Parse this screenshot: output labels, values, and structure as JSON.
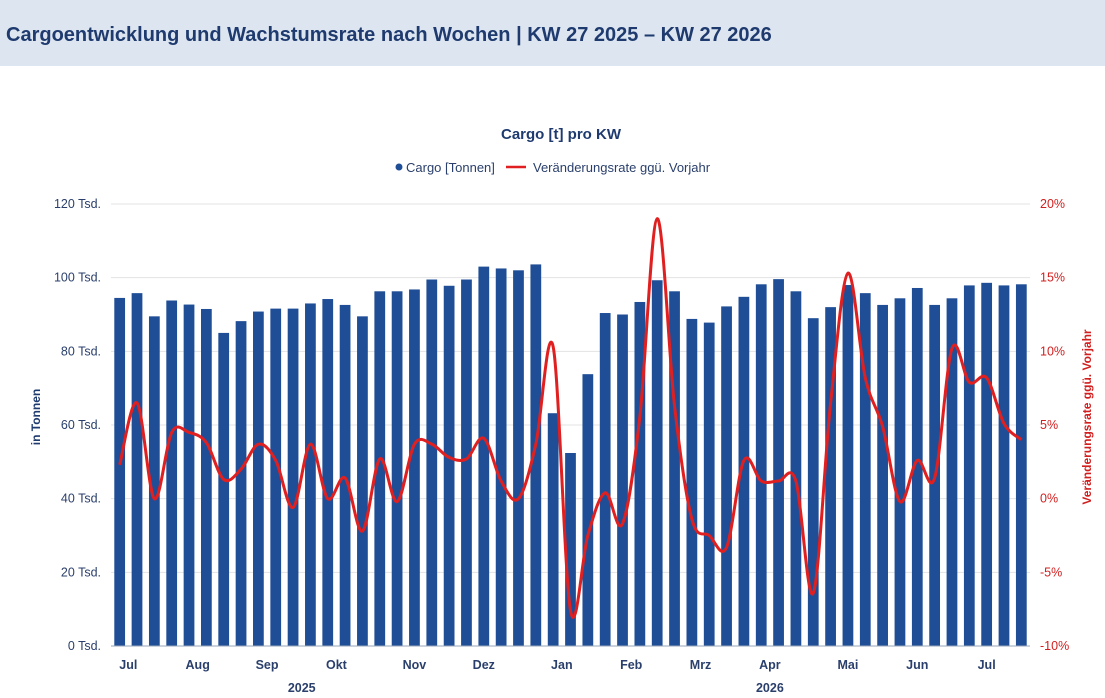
{
  "header": {
    "title": "Cargoentwicklung und Wachstumsrate nach Wochen | KW 27 2025 – KW 27 2026"
  },
  "colors": {
    "bar": "#1f4e96",
    "line": "#e02020",
    "header_bg": "#dde6f0",
    "grid": "#e3e3e3"
  },
  "chart_data": {
    "type": "bar",
    "title": "Cargo [t] pro KW",
    "ylabel": "in Tonnen",
    "y2label": "Veränderungsrate ggü. Vorjahr",
    "ylim": [
      0,
      120000
    ],
    "y2lim": [
      -10,
      20
    ],
    "yticks": [
      "0 Tsd.",
      "20 Tsd.",
      "40 Tsd.",
      "60 Tsd.",
      "80 Tsd.",
      "100 Tsd.",
      "120 Tsd."
    ],
    "y2ticks": [
      "-10%",
      "-5%",
      "0%",
      "5%",
      "10%",
      "15%",
      "20%"
    ],
    "months": [
      "Jul",
      "Aug",
      "Sep",
      "Okt",
      "Nov",
      "Dez",
      "Jan",
      "Feb",
      "Mrz",
      "Apr",
      "Mai",
      "Jun",
      "Jul"
    ],
    "month_weeks": [
      1,
      5,
      9,
      13,
      17.5,
      21.5,
      26,
      30,
      34,
      38,
      42.5,
      46.5,
      50.5
    ],
    "years": [
      "2025",
      "2026"
    ],
    "year_weeks": [
      11,
      38
    ],
    "legend_position": "top-center",
    "series": [
      {
        "name": "Cargo [Tonnen]",
        "kind": "bar",
        "values": [
          94500,
          95800,
          89500,
          93800,
          92700,
          91500,
          85000,
          88200,
          90800,
          91600,
          91600,
          93000,
          94200,
          92600,
          89500,
          96300,
          96300,
          96800,
          99500,
          97800,
          99500,
          103000,
          102500,
          102000,
          103600,
          63200,
          52400,
          73800,
          90400,
          90000,
          93400,
          99300,
          96300,
          88800,
          87800,
          92200,
          94800,
          98200,
          99600,
          96300,
          89000,
          92000,
          98000,
          95800,
          92600,
          94400,
          97200,
          92600,
          94400,
          97900,
          98600,
          97900,
          98200
        ]
      },
      {
        "name": "Veränderungsrate ggü. Vorjahr",
        "kind": "line",
        "values": [
          2.3,
          6.5,
          0.0,
          4.5,
          4.5,
          3.8,
          1.3,
          2.0,
          3.7,
          2.6,
          -0.6,
          3.7,
          0.0,
          1.4,
          -2.2,
          2.7,
          -0.2,
          3.7,
          3.7,
          2.8,
          2.7,
          4.1,
          1.2,
          0.0,
          3.7,
          10.3,
          -7.6,
          -2.5,
          0.4,
          -1.7,
          5.6,
          19.0,
          6.3,
          -1.4,
          -2.5,
          -3.3,
          2.6,
          1.2,
          1.2,
          1.2,
          -6.4,
          6.5,
          15.3,
          8.2,
          4.9,
          -0.2,
          2.6,
          1.4,
          10.2,
          7.9,
          8.2,
          5.1,
          4.0
        ]
      }
    ]
  }
}
